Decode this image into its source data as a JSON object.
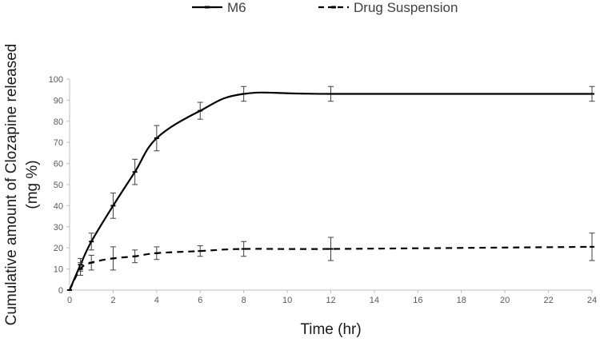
{
  "chart_data": {
    "type": "line",
    "title": "",
    "xlabel": "Time (hr)",
    "ylabel_lines": [
      "Cumulative amount of Clozapine released",
      "(mg %)"
    ],
    "xlim": [
      0,
      24
    ],
    "ylim": [
      0,
      100
    ],
    "x_ticks": [
      0,
      2,
      4,
      6,
      8,
      10,
      12,
      14,
      16,
      18,
      20,
      22,
      24
    ],
    "y_ticks": [
      0,
      10,
      20,
      30,
      40,
      50,
      60,
      70,
      80,
      90,
      100
    ],
    "grid": false,
    "legend_position": "top",
    "series": [
      {
        "name": "M6",
        "style": "solid",
        "color": "#000000",
        "x": [
          0,
          0.5,
          1,
          2,
          3,
          4,
          6,
          8,
          12,
          24
        ],
        "y": [
          0,
          12,
          23,
          40,
          56,
          72,
          85,
          93,
          93,
          93
        ],
        "err": [
          0,
          3,
          4,
          6,
          6,
          6,
          4,
          3.5,
          3.5,
          3.5
        ]
      },
      {
        "name": "Drug Suspension",
        "style": "dashed",
        "color": "#000000",
        "x": [
          0,
          0.5,
          1,
          2,
          3,
          4,
          6,
          8,
          12,
          24
        ],
        "y": [
          0,
          10,
          13,
          15,
          16,
          17.5,
          18.5,
          19.5,
          19.5,
          20.5
        ],
        "err": [
          0,
          3,
          3.5,
          5.5,
          3,
          3,
          2.5,
          3.5,
          5.5,
          6.5
        ]
      }
    ]
  }
}
